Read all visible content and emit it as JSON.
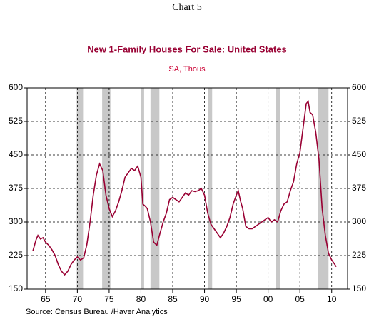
{
  "chart_data": {
    "type": "line",
    "header": "Chart 5",
    "title": "New 1-Family Houses For Sale: United States",
    "subtitle": "SA, Thous",
    "source": "Source:  Census Bureau /Haver Analytics",
    "xlim": [
      1962.1,
      2012.5
    ],
    "ylim": [
      150,
      600
    ],
    "yticks": [
      150,
      225,
      300,
      375,
      450,
      525,
      600
    ],
    "xticks": [
      {
        "value": 1965,
        "label": "65"
      },
      {
        "value": 1970,
        "label": "70"
      },
      {
        "value": 1975,
        "label": "75"
      },
      {
        "value": 1980,
        "label": "80"
      },
      {
        "value": 1985,
        "label": "85"
      },
      {
        "value": 1990,
        "label": "90"
      },
      {
        "value": 1995,
        "label": "95"
      },
      {
        "value": 2000,
        "label": "00"
      },
      {
        "value": 2005,
        "label": "05"
      },
      {
        "value": 2010,
        "label": "10"
      }
    ],
    "grid": true,
    "recession_color": "#c8c8c8",
    "recessions": [
      [
        1969.9,
        1970.9
      ],
      [
        1973.9,
        1975.2
      ],
      [
        1980.0,
        1980.5
      ],
      [
        1981.5,
        1982.9
      ],
      [
        1990.5,
        1991.2
      ],
      [
        2001.2,
        2001.9
      ],
      [
        2007.9,
        2009.5
      ]
    ],
    "series": [
      {
        "color": "#990033",
        "x": [
          1963.0,
          1963.5,
          1963.8,
          1964.2,
          1964.6,
          1965,
          1965.5,
          1966,
          1966.5,
          1967,
          1967.5,
          1968,
          1968.5,
          1969,
          1969.5,
          1970,
          1970.5,
          1971,
          1971.5,
          1972,
          1972.5,
          1973,
          1973.5,
          1974,
          1974.5,
          1975,
          1975.5,
          1976,
          1976.5,
          1977,
          1977.5,
          1978,
          1978.5,
          1979,
          1979.5,
          1980,
          1980.3,
          1980.7,
          1981,
          1981.5,
          1982,
          1982.5,
          1983,
          1983.5,
          1984,
          1984.5,
          1985,
          1985.5,
          1986,
          1986.5,
          1987,
          1987.5,
          1988,
          1988.5,
          1989,
          1989.5,
          1990,
          1990.5,
          1991,
          1991.5,
          1992,
          1992.5,
          1993,
          1993.5,
          1994,
          1994.5,
          1995,
          1995.3,
          1995.7,
          1996,
          1996.5,
          1997,
          1997.5,
          1998,
          1998.5,
          1999,
          1999.5,
          2000,
          2000.5,
          2001,
          2001.5,
          2002,
          2002.5,
          2003,
          2003.5,
          2004,
          2004.5,
          2005,
          2005.5,
          2006,
          2006.3,
          2006.6,
          2007,
          2007.5,
          2008,
          2008.5,
          2009,
          2009.5,
          2010,
          2010.5,
          2010.7
        ],
        "values": [
          235,
          260,
          270,
          262,
          265,
          255,
          248,
          238,
          225,
          205,
          190,
          182,
          190,
          205,
          215,
          222,
          215,
          220,
          250,
          300,
          360,
          405,
          430,
          415,
          360,
          330,
          312,
          325,
          345,
          370,
          400,
          410,
          420,
          415,
          425,
          400,
          340,
          335,
          330,
          300,
          255,
          248,
          275,
          300,
          320,
          350,
          355,
          350,
          345,
          355,
          365,
          360,
          370,
          368,
          370,
          375,
          360,
          320,
          295,
          285,
          275,
          265,
          275,
          290,
          310,
          340,
          360,
          370,
          345,
          330,
          290,
          285,
          285,
          290,
          295,
          300,
          305,
          310,
          300,
          305,
          300,
          325,
          340,
          345,
          370,
          390,
          430,
          455,
          510,
          565,
          570,
          545,
          540,
          500,
          440,
          330,
          270,
          230,
          215,
          205,
          200
        ]
      }
    ]
  }
}
